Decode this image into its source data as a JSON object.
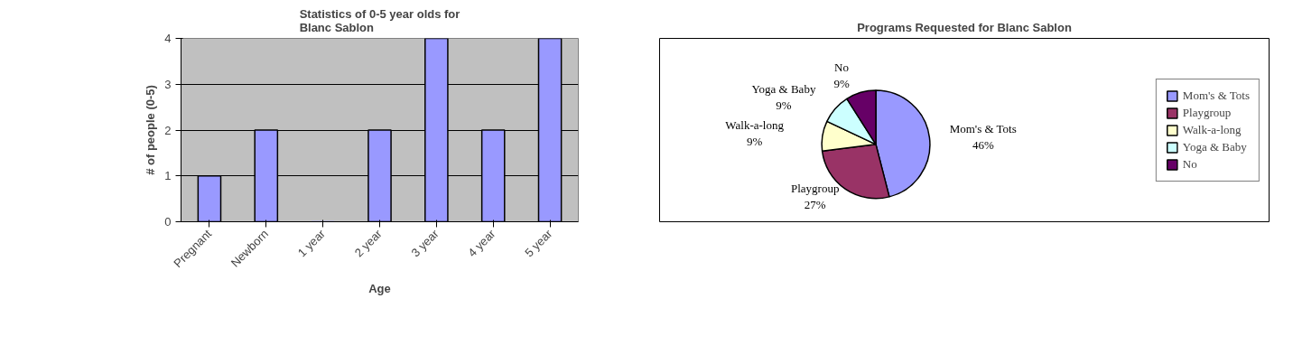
{
  "chart_data": [
    {
      "type": "bar",
      "title": "Statistics of 0-5 year olds for\nBlanc Sablon",
      "xlabel": "Age",
      "ylabel": "# of people (0-5)",
      "categories": [
        "Pregnant",
        "Newborn",
        "1 year",
        "2 year",
        "3 year",
        "4 year",
        "5 year"
      ],
      "values": [
        1,
        2,
        0,
        2,
        4,
        2,
        4
      ],
      "color": "#9999ff",
      "ylim": [
        0,
        4
      ],
      "yticks": [
        0,
        1,
        2,
        3,
        4
      ],
      "grid": "y"
    },
    {
      "type": "pie",
      "title": "Programs Requested for Blanc Sablon",
      "categories": [
        "Mom's & Tots",
        "Playgroup",
        "Walk-a-long",
        "Yoga & Baby",
        "No"
      ],
      "values": [
        46,
        27,
        9,
        9,
        9
      ],
      "value_labels": [
        "46%",
        "27%",
        "9%",
        "9%",
        "9%"
      ],
      "colors": [
        "#9999ff",
        "#993366",
        "#ffffcc",
        "#ccffff",
        "#660066"
      ],
      "legend": "right"
    }
  ]
}
